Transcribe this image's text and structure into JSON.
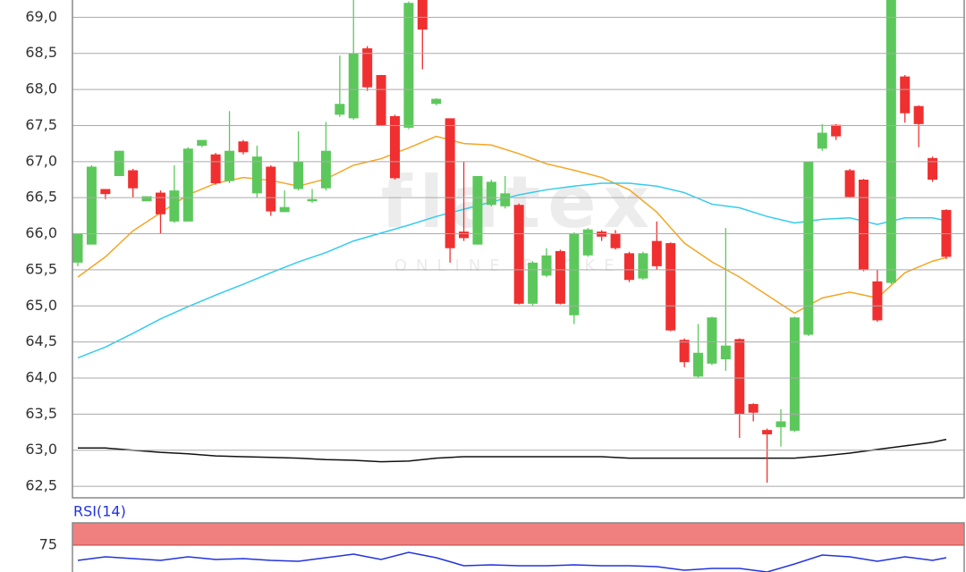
{
  "chart_data": [
    {
      "type": "candlestick",
      "xlim": [
        -0.39,
        64.3
      ],
      "ylim": [
        62.34,
        69.24
      ],
      "yticks": [
        {
          "value": 62.5,
          "label": "62,5"
        },
        {
          "value": 63.0,
          "label": "63,0"
        },
        {
          "value": 63.5,
          "label": "63,5"
        },
        {
          "value": 64.0,
          "label": "64,0"
        },
        {
          "value": 64.5,
          "label": "64,5"
        },
        {
          "value": 65.0,
          "label": "65,0"
        },
        {
          "value": 65.5,
          "label": "65,5"
        },
        {
          "value": 66.0,
          "label": "66,0"
        },
        {
          "value": 66.5,
          "label": "66,5"
        },
        {
          "value": 67.0,
          "label": "67,0"
        },
        {
          "value": 67.5,
          "label": "67,5"
        },
        {
          "value": 68.0,
          "label": "68,0"
        },
        {
          "value": 68.5,
          "label": "68,5"
        },
        {
          "value": 69.0,
          "label": "69,0"
        }
      ],
      "grid": true,
      "up_color": "#5cc85c",
      "down_color": "#f03030",
      "watermark": {
        "title": "flatex",
        "subtitle": "ONLINE BROKER"
      },
      "open": [
        65.6,
        65.85,
        66.62,
        66.8,
        66.88,
        66.45,
        66.57,
        66.17,
        66.17,
        67.22,
        67.1,
        66.73,
        67.28,
        66.56,
        66.93,
        66.3,
        66.62,
        66.45,
        66.63,
        67.65,
        67.6,
        68.57,
        68.2,
        67.63,
        67.47,
        69.4,
        67.8,
        67.6,
        66.03,
        65.85,
        66.4,
        66.38,
        66.4,
        65.03,
        65.42,
        65.76,
        64.87,
        65.7,
        66.03,
        66.0,
        65.73,
        65.38,
        65.9,
        65.87,
        64.53,
        64.02,
        64.2,
        64.26,
        64.54,
        63.64,
        63.28,
        63.32,
        63.27,
        64.6,
        67.18,
        67.51,
        66.88,
        66.75,
        65.34,
        65.32,
        68.18,
        67.77,
        67.05,
        66.33
      ],
      "high": [
        66.0,
        66.95,
        66.62,
        67.15,
        66.9,
        66.52,
        66.6,
        66.95,
        67.2,
        67.3,
        67.12,
        67.7,
        67.3,
        67.22,
        66.95,
        66.6,
        67.42,
        66.62,
        67.55,
        68.47,
        69.4,
        68.6,
        68.2,
        67.65,
        69.22,
        69.4,
        67.88,
        67.6,
        67.0,
        66.8,
        66.75,
        66.8,
        66.42,
        65.62,
        65.8,
        65.78,
        66.02,
        66.08,
        66.05,
        66.05,
        65.75,
        65.75,
        66.17,
        65.88,
        64.55,
        64.75,
        64.85,
        66.08,
        64.55,
        63.65,
        63.3,
        63.57,
        64.85,
        67.0,
        67.52,
        67.52,
        66.9,
        66.76,
        65.5,
        69.4,
        68.2,
        67.78,
        67.07,
        66.34
      ],
      "low": [
        65.55,
        65.85,
        66.48,
        66.8,
        66.5,
        66.45,
        66.0,
        66.15,
        66.17,
        67.2,
        66.68,
        66.7,
        67.1,
        66.5,
        66.25,
        66.3,
        66.6,
        66.43,
        66.6,
        67.62,
        67.58,
        67.98,
        67.5,
        66.75,
        67.45,
        68.28,
        67.78,
        65.6,
        65.9,
        65.85,
        66.38,
        66.35,
        65.02,
        65.0,
        65.4,
        65.02,
        64.75,
        65.68,
        65.9,
        65.78,
        65.33,
        65.36,
        65.5,
        64.65,
        64.15,
        64.0,
        64.18,
        64.1,
        63.17,
        63.4,
        62.55,
        63.05,
        63.25,
        64.58,
        67.15,
        67.3,
        66.5,
        65.48,
        64.78,
        65.3,
        67.54,
        67.2,
        66.72,
        65.65
      ],
      "close": [
        66.0,
        66.93,
        66.55,
        67.15,
        66.63,
        66.52,
        66.27,
        66.6,
        67.18,
        67.3,
        66.7,
        67.15,
        67.13,
        67.07,
        66.31,
        66.37,
        67.0,
        66.48,
        67.15,
        67.8,
        68.5,
        68.03,
        67.5,
        66.77,
        69.2,
        68.83,
        67.87,
        65.8,
        65.94,
        66.8,
        66.72,
        66.56,
        65.03,
        65.6,
        65.7,
        65.03,
        66.0,
        66.06,
        65.96,
        65.8,
        65.36,
        65.73,
        65.55,
        64.66,
        64.22,
        64.35,
        64.84,
        64.45,
        63.5,
        63.52,
        63.22,
        63.4,
        64.84,
        67.0,
        67.4,
        67.35,
        66.51,
        65.5,
        64.8,
        69.4,
        67.67,
        67.52,
        66.75,
        65.68
      ],
      "series": [
        {
          "color": "#f5a623",
          "x": [
            0,
            2,
            4,
            6,
            8,
            10,
            12,
            14,
            16,
            18,
            20,
            22,
            24,
            26,
            28,
            30,
            32,
            34,
            36,
            38,
            40,
            42,
            44,
            46,
            48,
            50,
            52,
            54,
            56,
            58,
            60,
            62,
            63
          ],
          "values": [
            65.4,
            65.68,
            66.04,
            66.29,
            66.54,
            66.7,
            66.78,
            66.74,
            66.66,
            66.76,
            66.95,
            67.04,
            67.19,
            67.35,
            67.25,
            67.23,
            67.11,
            66.97,
            66.88,
            66.78,
            66.61,
            66.3,
            65.87,
            65.61,
            65.4,
            65.15,
            64.9,
            65.11,
            65.19,
            65.11,
            65.46,
            65.62,
            65.67
          ]
        },
        {
          "color": "#33ccee",
          "x": [
            0,
            2,
            4,
            6,
            8,
            10,
            12,
            14,
            16,
            18,
            20,
            22,
            24,
            26,
            28,
            30,
            32,
            34,
            36,
            38,
            40,
            42,
            44,
            46,
            48,
            50,
            52,
            54,
            56,
            58,
            60,
            62,
            63
          ],
          "values": [
            64.28,
            64.43,
            64.62,
            64.82,
            64.99,
            65.15,
            65.3,
            65.46,
            65.61,
            65.74,
            65.9,
            66.01,
            66.12,
            66.24,
            66.34,
            66.44,
            66.54,
            66.61,
            66.66,
            66.7,
            66.7,
            66.66,
            66.57,
            66.41,
            66.36,
            66.24,
            66.15,
            66.2,
            66.22,
            66.13,
            66.22,
            66.22,
            66.18
          ]
        },
        {
          "color": "#111111",
          "x": [
            0,
            2,
            4,
            6,
            8,
            10,
            12,
            14,
            16,
            18,
            20,
            22,
            24,
            26,
            28,
            30,
            32,
            34,
            36,
            38,
            40,
            42,
            44,
            46,
            48,
            50,
            52,
            54,
            56,
            58,
            60,
            62,
            63
          ],
          "values": [
            63.03,
            63.03,
            63.0,
            62.97,
            62.95,
            62.92,
            62.91,
            62.9,
            62.89,
            62.87,
            62.86,
            62.84,
            62.85,
            62.89,
            62.91,
            62.91,
            62.91,
            62.91,
            62.91,
            62.91,
            62.89,
            62.89,
            62.89,
            62.89,
            62.89,
            62.89,
            62.89,
            62.92,
            62.96,
            63.01,
            63.06,
            63.11,
            63.15
          ]
        }
      ]
    },
    {
      "type": "line",
      "title": "RSI(14)",
      "xlim": [
        -0.39,
        64.3
      ],
      "ylim": [
        45,
        100
      ],
      "yticks": [
        75
      ],
      "band": [
        75,
        100
      ],
      "band_color": "#f08080",
      "series": [
        {
          "color": "#2233dd",
          "x": [
            0,
            2,
            4,
            6,
            8,
            10,
            12,
            14,
            16,
            18,
            20,
            22,
            24,
            26,
            28,
            30,
            32,
            34,
            36,
            38,
            40,
            42,
            44,
            46,
            48,
            50,
            52,
            54,
            56,
            58,
            60,
            62,
            63
          ],
          "values": [
            58,
            62,
            60,
            58,
            62,
            59,
            60,
            58,
            57,
            61,
            65,
            59,
            67,
            61,
            52,
            53,
            52,
            52,
            53,
            52,
            52,
            51,
            47,
            49,
            49,
            45,
            54,
            64,
            62,
            57,
            62,
            58,
            61
          ]
        }
      ]
    }
  ]
}
